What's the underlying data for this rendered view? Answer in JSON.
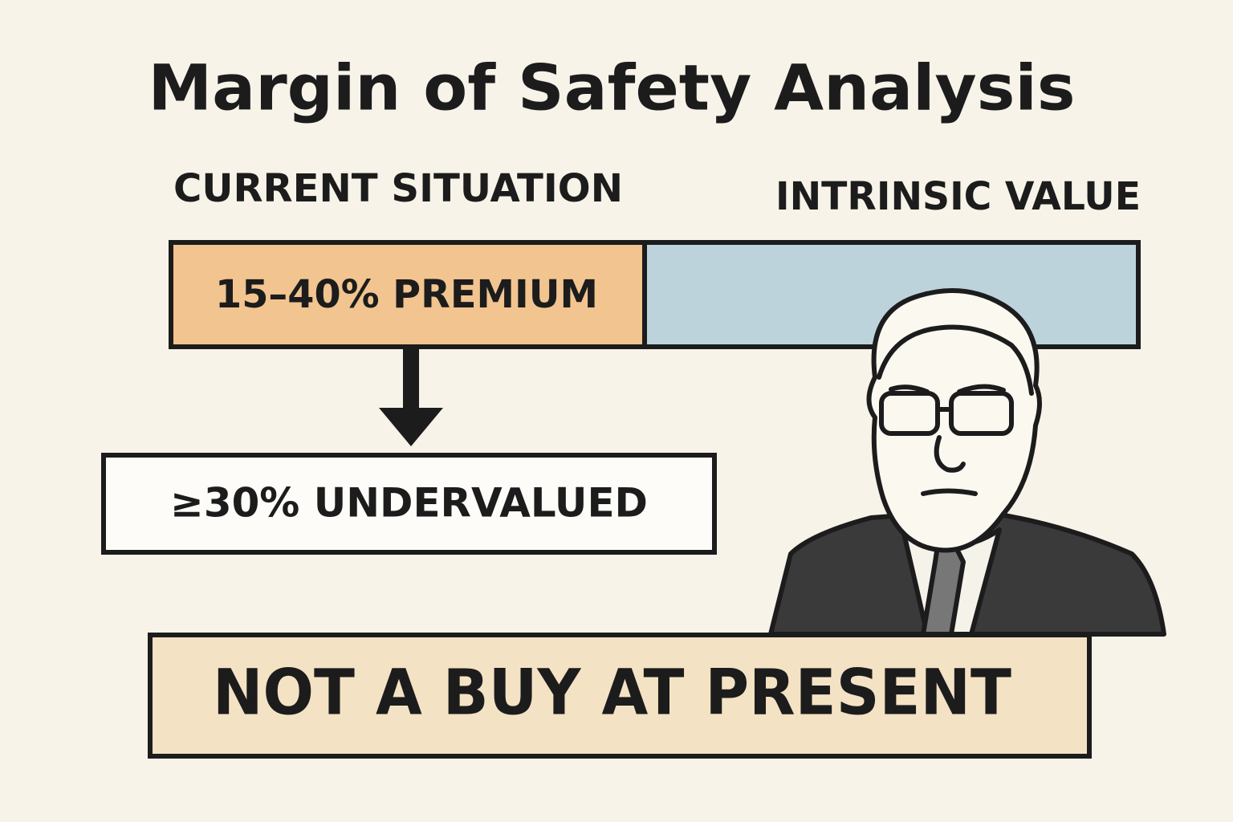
{
  "header": {
    "title": "Margin of Safety Analysis"
  },
  "labels": {
    "current": "CURRENT SITUATION",
    "intrinsic": "INTRINSIC VALUE"
  },
  "bar": {
    "premium": "15–40% PREMIUM"
  },
  "requirement": "≥30% UNDERVALUED",
  "verdict": "NOT A BUY AT PRESENT"
}
